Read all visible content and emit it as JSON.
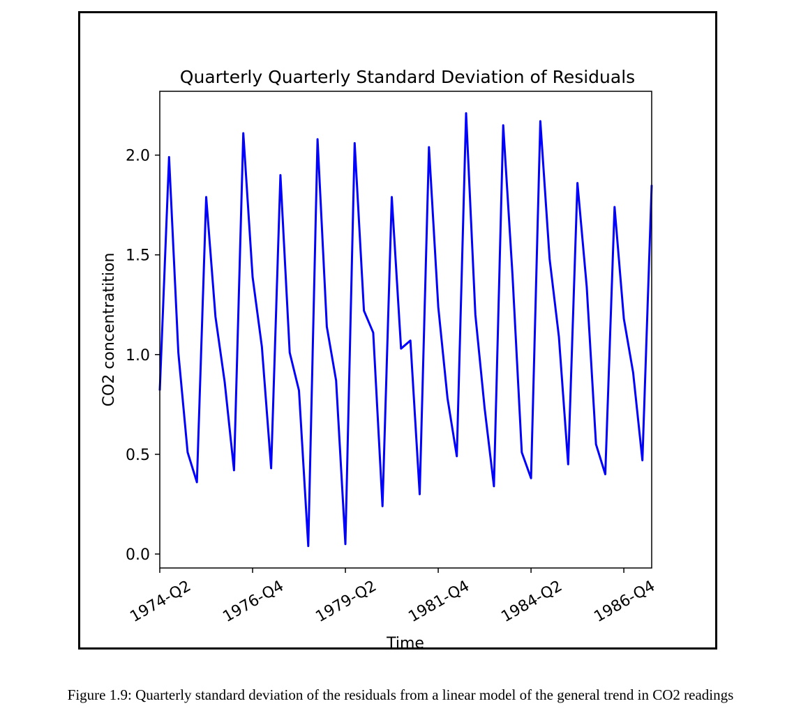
{
  "chart_data": {
    "type": "line",
    "title": "Quarterly Quarterly Standard Deviation of Residuals",
    "xlabel": "Time",
    "ylabel": "CO2 concentratition",
    "x_tick_labels": [
      "1974-Q2",
      "1976-Q4",
      "1979-Q2",
      "1981-Q4",
      "1984-Q2",
      "1986-Q4"
    ],
    "y_ticks": [
      0.0,
      0.5,
      1.0,
      1.5,
      2.0
    ],
    "y_tick_labels": [
      "0.0",
      "0.5",
      "1.0",
      "1.5",
      "2.0"
    ],
    "ylim": [
      -0.07,
      2.32
    ],
    "xlim": [
      "1974-Q2",
      "1987-Q3"
    ],
    "grid": false,
    "series": [
      {
        "color": "#0000ff",
        "x": [
          "1974-Q2",
          "1974-Q3",
          "1974-Q4",
          "1975-Q1",
          "1975-Q2",
          "1975-Q3",
          "1975-Q4",
          "1976-Q1",
          "1976-Q2",
          "1976-Q3",
          "1976-Q4",
          "1977-Q1",
          "1977-Q2",
          "1977-Q3",
          "1977-Q4",
          "1978-Q1",
          "1978-Q2",
          "1978-Q3",
          "1978-Q4",
          "1979-Q1",
          "1979-Q2",
          "1979-Q3",
          "1979-Q4",
          "1980-Q1",
          "1980-Q2",
          "1980-Q3",
          "1980-Q4",
          "1981-Q1",
          "1981-Q2",
          "1981-Q3",
          "1981-Q4",
          "1982-Q1",
          "1982-Q2",
          "1982-Q3",
          "1982-Q4",
          "1983-Q1",
          "1983-Q2",
          "1983-Q3",
          "1983-Q4",
          "1984-Q1",
          "1984-Q2",
          "1984-Q3",
          "1984-Q4",
          "1985-Q1",
          "1985-Q2",
          "1985-Q3",
          "1985-Q4",
          "1986-Q1",
          "1986-Q2",
          "1986-Q3",
          "1986-Q4",
          "1987-Q1",
          "1987-Q2",
          "1987-Q3"
        ],
        "values": [
          0.82,
          1.99,
          1.01,
          0.51,
          0.36,
          1.79,
          1.19,
          0.86,
          0.42,
          2.11,
          1.39,
          1.04,
          0.43,
          1.9,
          1.01,
          0.82,
          0.04,
          2.08,
          1.14,
          0.87,
          0.05,
          2.06,
          1.22,
          1.11,
          0.24,
          1.79,
          1.03,
          1.07,
          0.3,
          2.04,
          1.24,
          0.78,
          0.49,
          2.21,
          1.2,
          0.73,
          0.34,
          2.15,
          1.4,
          0.51,
          0.38,
          2.17,
          1.48,
          1.09,
          0.45,
          1.86,
          1.34,
          0.55,
          0.4,
          1.74,
          1.18,
          0.91,
          0.47,
          1.85
        ]
      }
    ]
  },
  "caption": "Figure 1.9: Quarterly standard deviation of the residuals from a linear model of the general trend in CO2 readings"
}
